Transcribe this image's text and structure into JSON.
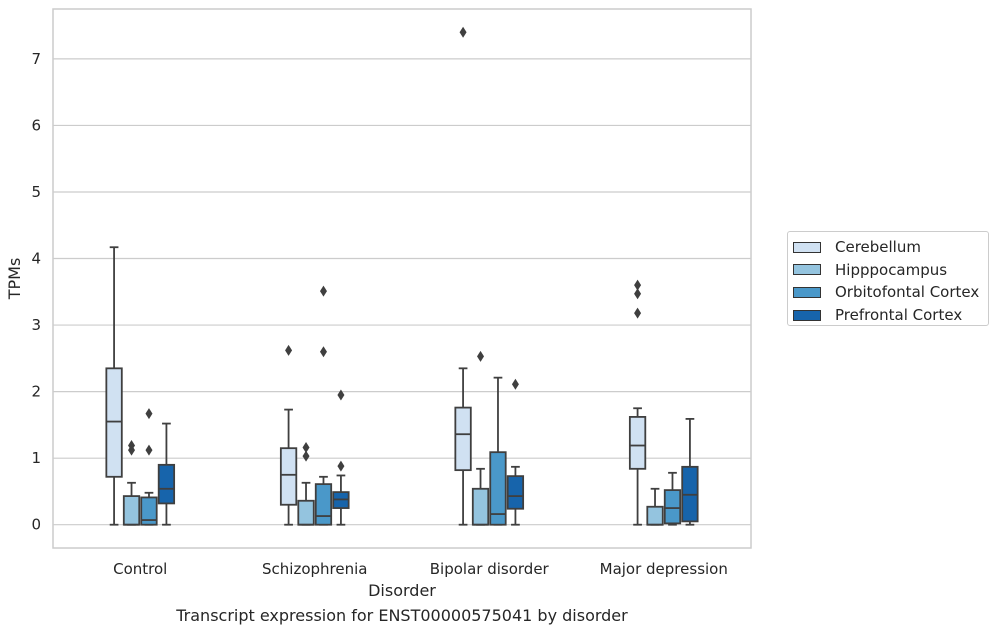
{
  "caption": "Transcript expression for ENST00000575041 by disorder",
  "legend_title": "",
  "colors": {
    "Cerebellum": "#d0e1f2",
    "Hipppocampus": "#94c4df",
    "Orbitofontal Cortex": "#4a98c9",
    "Prefrontal Cortex": "#1764ab"
  },
  "chart_data": {
    "type": "box",
    "title": "",
    "xlabel": "Disorder",
    "ylabel": "TPMs",
    "categories": [
      "Control",
      "Schizophrenia",
      "Bipolar disorder",
      "Major depression"
    ],
    "ylim": [
      -0.35,
      7.75
    ],
    "yticks": [
      0,
      1,
      2,
      3,
      4,
      5,
      6,
      7
    ],
    "grid": "horizontal",
    "legend_position": "right",
    "series": [
      {
        "name": "Cerebellum",
        "boxes": [
          {
            "whislo": 0.0,
            "q1": 0.72,
            "med": 1.55,
            "q3": 2.35,
            "whishi": 4.17,
            "fliers": []
          },
          {
            "whislo": 0.0,
            "q1": 0.3,
            "med": 0.75,
            "q3": 1.15,
            "whishi": 1.73,
            "fliers": [
              2.62
            ]
          },
          {
            "whislo": 0.0,
            "q1": 0.82,
            "med": 1.36,
            "q3": 1.76,
            "whishi": 2.35,
            "fliers": [
              7.4
            ]
          },
          {
            "whislo": 0.0,
            "q1": 0.84,
            "med": 1.19,
            "q3": 1.62,
            "whishi": 1.75,
            "fliers": [
              3.18,
              3.47,
              3.6
            ]
          }
        ]
      },
      {
        "name": "Hipppocampus",
        "boxes": [
          {
            "whislo": 0.0,
            "q1": 0.0,
            "med": 0.0,
            "q3": 0.43,
            "whishi": 0.63,
            "fliers": [
              1.12,
              1.19
            ]
          },
          {
            "whislo": 0.0,
            "q1": 0.0,
            "med": 0.0,
            "q3": 0.36,
            "whishi": 0.63,
            "fliers": [
              1.03,
              1.16
            ]
          },
          {
            "whislo": 0.0,
            "q1": 0.0,
            "med": 0.0,
            "q3": 0.54,
            "whishi": 0.84,
            "fliers": [
              2.53
            ]
          },
          {
            "whislo": 0.0,
            "q1": 0.0,
            "med": 0.0,
            "q3": 0.27,
            "whishi": 0.54,
            "fliers": []
          }
        ]
      },
      {
        "name": "Orbitofontal Cortex",
        "boxes": [
          {
            "whislo": 0.0,
            "q1": 0.0,
            "med": 0.07,
            "q3": 0.41,
            "whishi": 0.48,
            "fliers": [
              1.12,
              1.67
            ]
          },
          {
            "whislo": 0.0,
            "q1": 0.0,
            "med": 0.13,
            "q3": 0.61,
            "whishi": 0.72,
            "fliers": [
              2.6,
              3.51
            ]
          },
          {
            "whislo": 0.0,
            "q1": 0.0,
            "med": 0.16,
            "q3": 1.09,
            "whishi": 2.21,
            "fliers": []
          },
          {
            "whislo": 0.0,
            "q1": 0.02,
            "med": 0.25,
            "q3": 0.52,
            "whishi": 0.78,
            "fliers": []
          }
        ]
      },
      {
        "name": "Prefrontal Cortex",
        "boxes": [
          {
            "whislo": 0.0,
            "q1": 0.32,
            "med": 0.54,
            "q3": 0.9,
            "whishi": 1.52,
            "fliers": []
          },
          {
            "whislo": 0.0,
            "q1": 0.25,
            "med": 0.38,
            "q3": 0.49,
            "whishi": 0.74,
            "fliers": [
              0.88,
              1.95
            ]
          },
          {
            "whislo": 0.0,
            "q1": 0.24,
            "med": 0.43,
            "q3": 0.73,
            "whishi": 0.87,
            "fliers": [
              2.11
            ]
          },
          {
            "whislo": 0.0,
            "q1": 0.05,
            "med": 0.45,
            "q3": 0.87,
            "whishi": 1.59,
            "fliers": []
          }
        ]
      }
    ]
  }
}
